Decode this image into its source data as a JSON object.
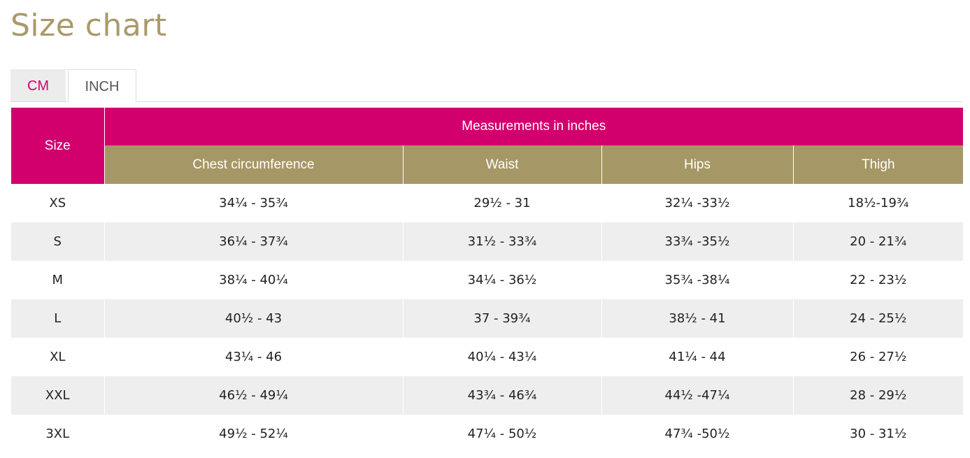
{
  "page": {
    "title": "Size chart"
  },
  "tabs": [
    {
      "label": "CM",
      "active": false
    },
    {
      "label": "INCH",
      "active": true
    }
  ],
  "table": {
    "size_header": "Size",
    "group_header": "Measurements in inches",
    "columns": [
      "Chest circumference",
      "Waist",
      "Hips",
      "Thigh"
    ],
    "rows": [
      {
        "size": "XS",
        "chest": "34¼ - 35¾",
        "waist": "29½  - 31",
        "hips": "32¼ -33½",
        "thigh": "18½-19¾"
      },
      {
        "size": "S",
        "chest": "36¼ - 37¾",
        "waist": "31½  - 33¾",
        "hips": "33¾ -35½",
        "thigh": "20 - 21¾"
      },
      {
        "size": "M",
        "chest": "38¼ - 40¼",
        "waist": "34¼ - 36½",
        "hips": "35¾ -38¼",
        "thigh": "22 - 23½"
      },
      {
        "size": "L",
        "chest": "40½  - 43",
        "waist": "37 - 39¾",
        "hips": "38½  - 41",
        "thigh": "24 - 25½"
      },
      {
        "size": "XL",
        "chest": "43¼ - 46",
        "waist": "40¼ - 43¼",
        "hips": "41¼ - 44",
        "thigh": "26 - 27½"
      },
      {
        "size": "XXL",
        "chest": "46½  - 49¼",
        "waist": "43¾ - 46¾",
        "hips": "44½  -47¼",
        "thigh": "28 - 29½"
      },
      {
        "size": "3XL",
        "chest": "49½  - 52¼",
        "waist": "47¼ - 50½",
        "hips": "47¾ -50½",
        "thigh": "30 - 31½"
      }
    ]
  },
  "colors": {
    "title": "#a99a6a",
    "accent_magenta": "#d1006d",
    "header_gold": "#a69766",
    "row_alt": "#eeeeee"
  }
}
